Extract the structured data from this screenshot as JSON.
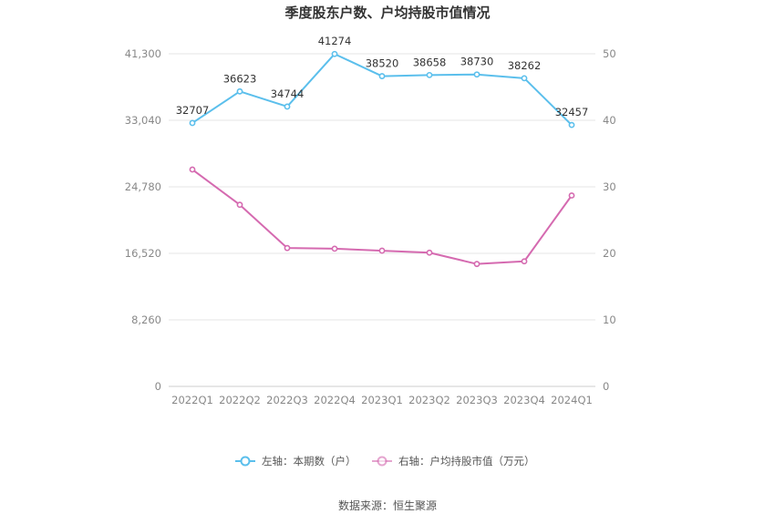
{
  "chart_data": {
    "type": "line",
    "title": "季度股东户数、户均持股市值情况",
    "categories": [
      "2022Q1",
      "2022Q2",
      "2022Q3",
      "2022Q4",
      "2023Q1",
      "2023Q2",
      "2023Q3",
      "2023Q4",
      "2024Q1"
    ],
    "series": [
      {
        "name": "左轴：本期数（户）",
        "axis": "left",
        "color": "#5bbfec",
        "values": [
          32707,
          36623,
          34744,
          41274,
          38520,
          38658,
          38730,
          38262,
          32457
        ],
        "labels": [
          "32707",
          "36623",
          "34744",
          "41274",
          "38520",
          "38658",
          "38730",
          "38262",
          "32457"
        ]
      },
      {
        "name": "右轴：户均持股市值（万元）",
        "axis": "right",
        "color": "#d56ab0",
        "values": [
          32.6,
          27.3,
          20.8,
          20.7,
          20.4,
          20.1,
          18.4,
          18.8,
          28.7
        ]
      }
    ],
    "y_left": {
      "min": 0,
      "max": 41300,
      "ticks": [
        0,
        8260,
        16520,
        24780,
        33040,
        41300
      ],
      "tick_labels": [
        "0",
        "8,260",
        "16,520",
        "24,780",
        "33,040",
        "41,300"
      ]
    },
    "y_right": {
      "min": 0,
      "max": 50,
      "ticks": [
        0,
        10,
        20,
        30,
        40,
        50
      ],
      "tick_labels": [
        "0",
        "10",
        "20",
        "30",
        "40",
        "50"
      ]
    },
    "grid": true,
    "legend_position": "bottom-center",
    "source": "数据来源：恒生聚源"
  }
}
